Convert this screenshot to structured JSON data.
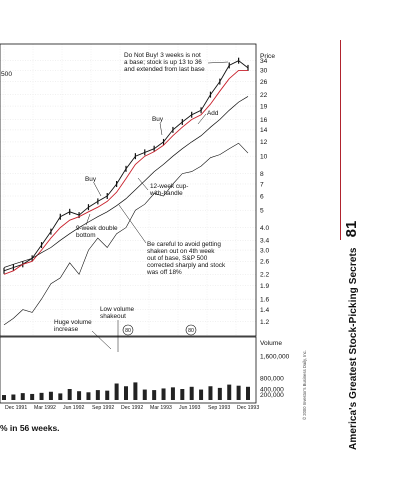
{
  "figure": {
    "price_axis_title": "Price",
    "price_ticks": [
      "34",
      "30",
      "26",
      "22",
      "19",
      "16",
      "14",
      "12",
      "10",
      "8",
      "7",
      "6",
      "5",
      "4.0",
      "3.4",
      "3.0",
      "2.6",
      "2.2",
      "1.9",
      "1.6",
      "1.4",
      "1.2"
    ],
    "volume_axis_title": "Volume",
    "volume_ticks": [
      "1,600,000",
      "800,000",
      "400,000",
      "200,000"
    ],
    "date_labels": [
      "Dec 1991",
      "Mar 1992",
      "Jun 1992",
      "Sep 1992",
      "Dec 1992",
      "Mar 1993",
      "Jun 1993",
      "Sep 1993",
      "Dec 1993"
    ],
    "partial_label": "500",
    "annotations": {
      "do_not_buy": [
        "Do Not Buy! 3 weeks is not",
        "a base; stock is up 13 to 36",
        "and extended from last base"
      ],
      "buy_top": "Buy",
      "add": "Add",
      "buy_mid": "Buy",
      "cup": [
        "12-week cup-",
        "with-handle"
      ],
      "double_bottom": [
        "9-week double",
        "bottom"
      ],
      "careful": [
        "Be careful to avoid getting",
        "shaken out on 4th week",
        "out of base, S&P 500",
        "corrected sharply and stock",
        "was off 18%"
      ],
      "low_volume": [
        "Low volume",
        "shakeout"
      ],
      "huge_volume": [
        "Huge volume",
        "increase"
      ],
      "circle_markers": [
        "80",
        "80"
      ]
    }
  },
  "chart_data": {
    "type": "line",
    "x": [
      "1991-10",
      "1991-11",
      "1991-12",
      "1992-01",
      "1992-02",
      "1992-03",
      "1992-04",
      "1992-05",
      "1992-06",
      "1992-07",
      "1992-08",
      "1992-09",
      "1992-10",
      "1992-11",
      "1992-12",
      "1993-01",
      "1993-02",
      "1993-03",
      "1993-04",
      "1993-05",
      "1993-06",
      "1993-07",
      "1993-08",
      "1993-09",
      "1993-10",
      "1993-11",
      "1993-12"
    ],
    "series": [
      {
        "values": [
          2.3,
          2.4,
          2.5,
          2.7,
          3.2,
          3.8,
          4.6,
          4.9,
          4.7,
          5.2,
          5.6,
          6.0,
          7.0,
          8.5,
          10.0,
          10.5,
          11.0,
          12.0,
          14.0,
          15.5,
          17.0,
          18.0,
          22.0,
          26.0,
          32.0,
          34.0,
          31.0
        ]
      },
      {
        "values": [
          2.2,
          2.3,
          2.5,
          2.6,
          3.0,
          3.5,
          4.0,
          4.4,
          4.6,
          4.9,
          5.2,
          5.6,
          6.3,
          7.5,
          9.0,
          10.0,
          10.6,
          11.5,
          13.0,
          14.5,
          16.0,
          17.0,
          19.5,
          23.0,
          27.0,
          30.0,
          30.0
        ]
      },
      {
        "values": [
          2.4,
          2.5,
          2.6,
          2.7,
          2.9,
          3.1,
          3.4,
          3.7,
          4.0,
          4.3,
          4.6,
          4.9,
          5.3,
          5.8,
          6.5,
          7.3,
          8.2,
          9.0,
          10.0,
          11.0,
          12.0,
          13.0,
          14.5,
          16.0,
          18.0,
          20.0,
          21.5
        ]
      },
      {
        "values": [
          1.15,
          1.25,
          1.4,
          1.35,
          1.6,
          1.95,
          2.1,
          2.55,
          2.2,
          3.0,
          3.5,
          3.1,
          3.7,
          4.0,
          5.0,
          5.4,
          6.2,
          6.0,
          7.0,
          8.0,
          8.2,
          8.8,
          9.8,
          10.2,
          11.0,
          11.8,
          10.4
        ]
      }
    ],
    "volume": [
      180000,
      200000,
      250000,
      220000,
      260000,
      300000,
      240000,
      400000,
      320000,
      280000,
      360000,
      340000,
      600000,
      500000,
      640000,
      380000,
      360000,
      420000,
      460000,
      400000,
      480000,
      380000,
      500000,
      440000,
      560000,
      520000,
      480000
    ],
    "y_scale": "log",
    "ylim": [
      1.05,
      40
    ],
    "volume_ylim": [
      0,
      2000000
    ]
  },
  "page": {
    "caption": "% in 56 weeks.",
    "copyright": "© 2000 Investor's Business Daily, Inc.",
    "running_head": "America's Greatest Stock-Picking Secrets",
    "page_number": "81"
  }
}
